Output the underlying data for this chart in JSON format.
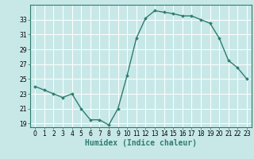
{
  "x": [
    0,
    1,
    2,
    3,
    4,
    5,
    6,
    7,
    8,
    9,
    10,
    11,
    12,
    13,
    14,
    15,
    16,
    17,
    18,
    19,
    20,
    21,
    22,
    23
  ],
  "y": [
    24.0,
    23.5,
    23.0,
    22.5,
    23.0,
    21.0,
    19.5,
    19.5,
    18.8,
    21.0,
    25.5,
    30.5,
    33.2,
    34.2,
    34.0,
    33.8,
    33.5,
    33.5,
    33.0,
    32.5,
    30.5,
    27.5,
    26.5,
    25.0
  ],
  "line_color": "#2e7d6e",
  "marker": "D",
  "markersize": 1.8,
  "linewidth": 1.0,
  "bg_color": "#c8e8e8",
  "grid_color": "#ffffff",
  "xlabel": "Humidex (Indice chaleur)",
  "xlabel_fontsize": 7,
  "yticks": [
    19,
    21,
    23,
    25,
    27,
    29,
    31,
    33
  ],
  "xticks": [
    0,
    1,
    2,
    3,
    4,
    5,
    6,
    7,
    8,
    9,
    10,
    11,
    12,
    13,
    14,
    15,
    16,
    17,
    18,
    19,
    20,
    21,
    22,
    23
  ],
  "ylim": [
    18.5,
    35.0
  ],
  "xlim": [
    -0.5,
    23.5
  ],
  "tick_fontsize": 5.5
}
